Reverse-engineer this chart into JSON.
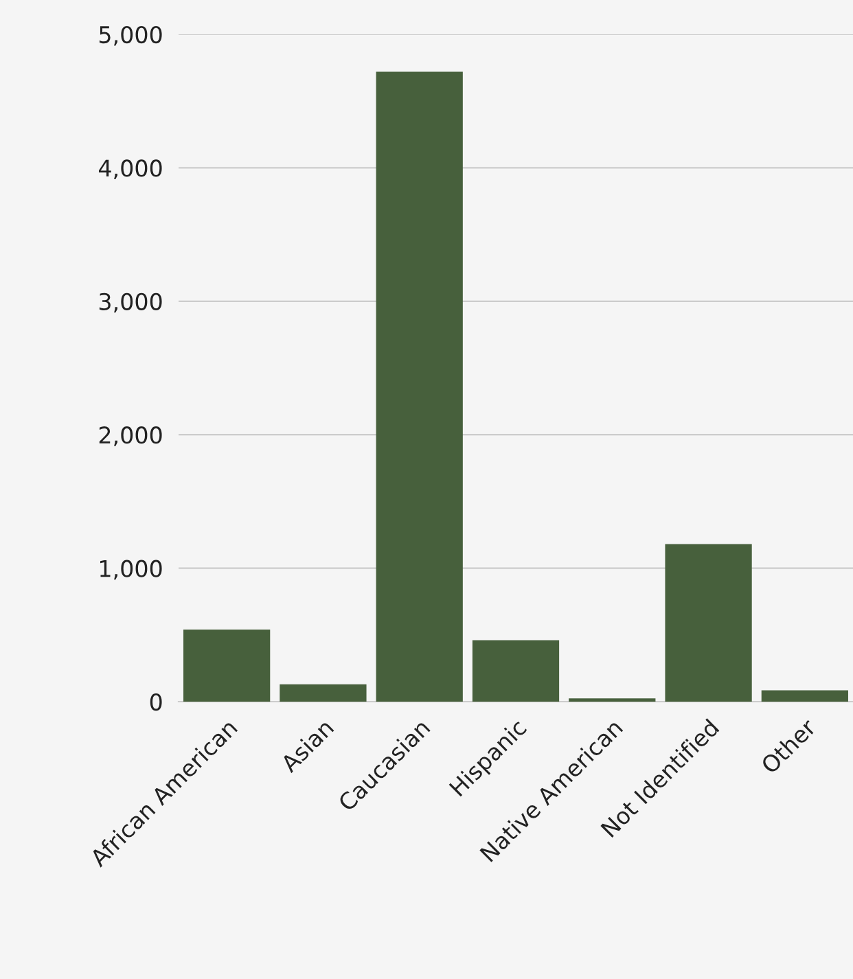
{
  "chart_data": {
    "type": "bar",
    "categories": [
      "African American",
      "Asian",
      "Caucasian",
      "Hispanic",
      "Native American",
      "Not Identified",
      "Other"
    ],
    "values": [
      540,
      130,
      4720,
      460,
      25,
      1180,
      85
    ],
    "color": "#47603c",
    "ylim": [
      0,
      5000
    ],
    "yticks": [
      {
        "value": 0,
        "label": "0"
      },
      {
        "value": 1000,
        "label": "1,000"
      },
      {
        "value": 2000,
        "label": "2,000"
      },
      {
        "value": 3000,
        "label": "3,000"
      },
      {
        "value": 4000,
        "label": "4,000"
      },
      {
        "value": 5000,
        "label": "5,000"
      }
    ],
    "grid": "y"
  }
}
